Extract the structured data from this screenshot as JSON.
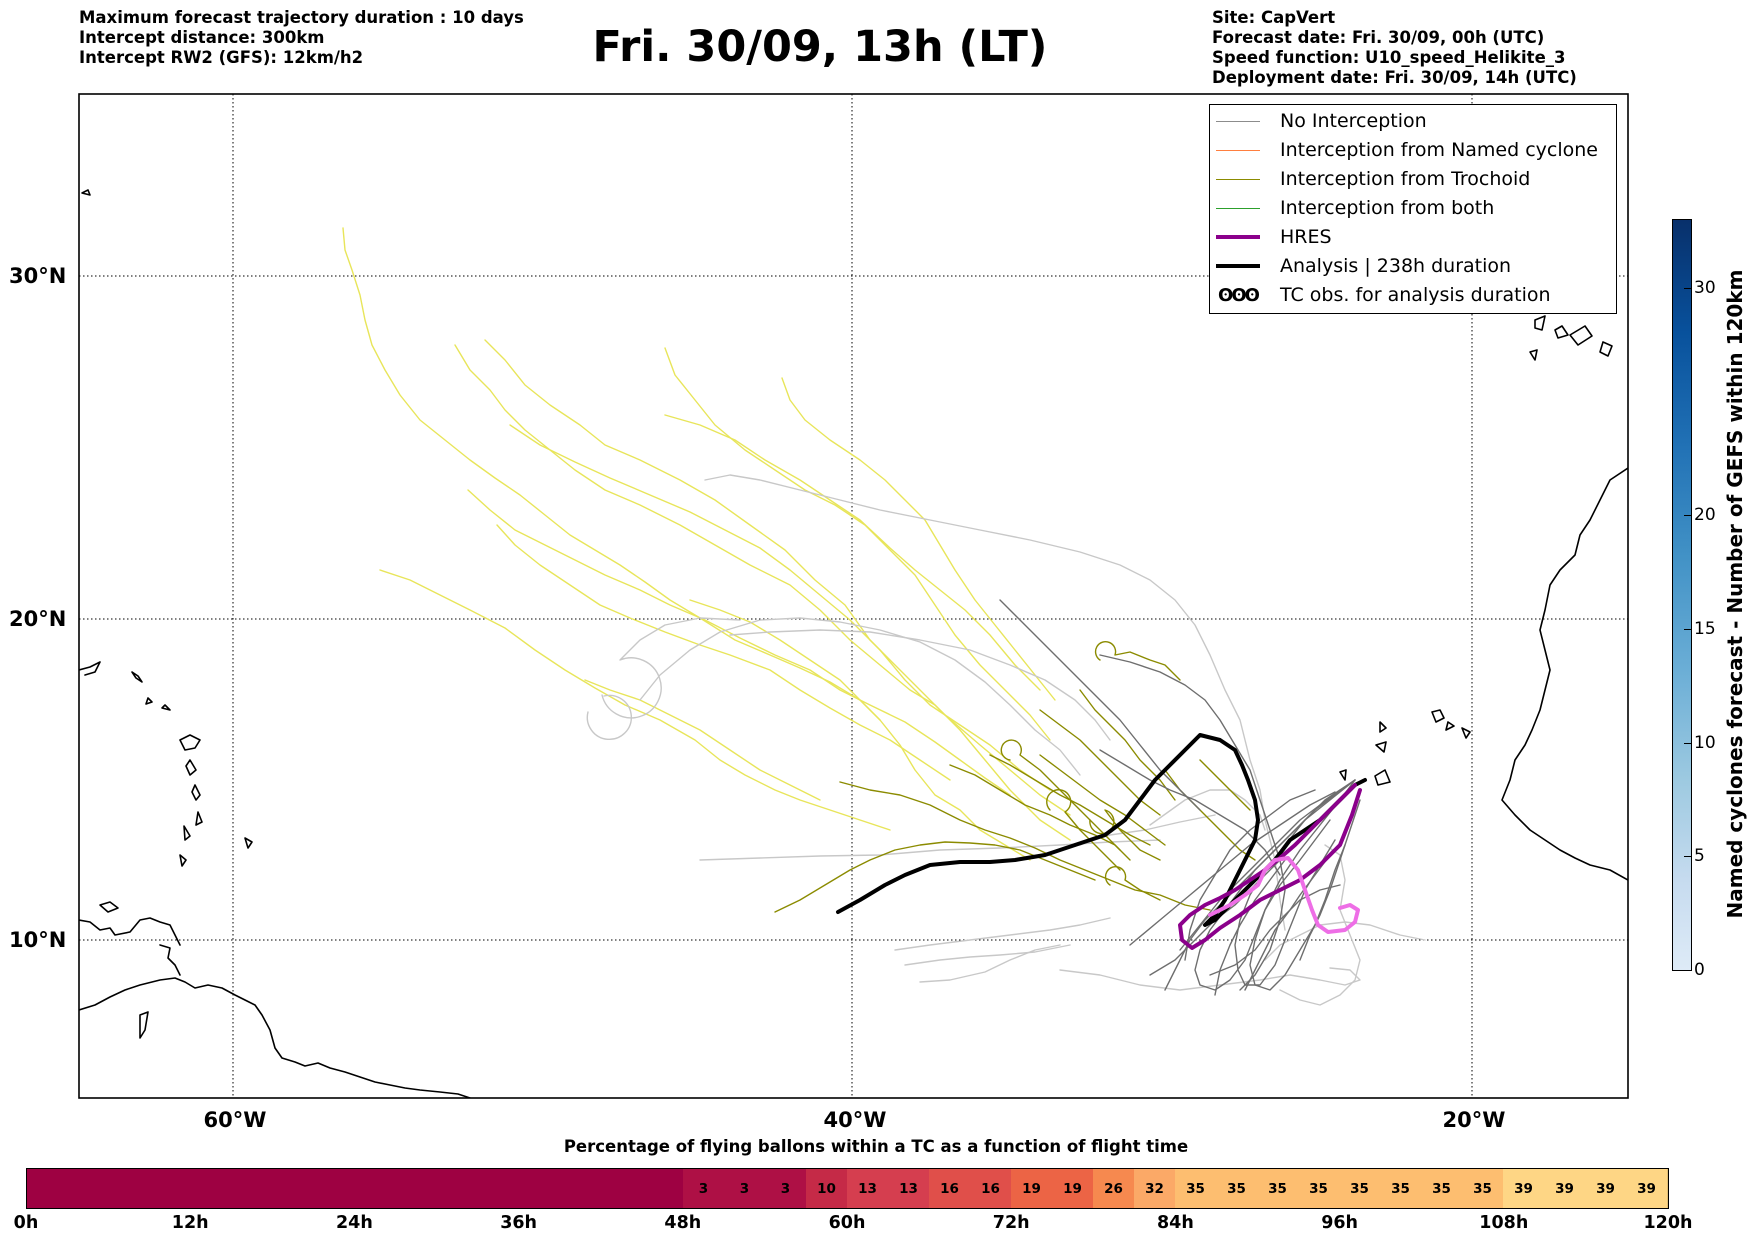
{
  "header": {
    "left": [
      "Maximum forecast trajectory duration : 10 days",
      "Intercept distance: 300km",
      "Intercept RW2 (GFS):  12km/h2"
    ],
    "title": "Fri. 30/09, 13h (LT)",
    "right": [
      "Site: CapVert",
      "Forecast date: Fri. 30/09, 00h (UTC)",
      "Speed function: U10_speed_Helikite_3",
      "Deployment date: Fri. 30/09, 14h (UTC)"
    ]
  },
  "map": {
    "lat_labels": [
      "30°N",
      "20°N",
      "10°N"
    ],
    "lon_labels": [
      "60°W",
      "40°W",
      "20°W"
    ]
  },
  "legend": {
    "items": [
      {
        "label": "No Interception",
        "color": "#8c8c8c",
        "width": 1.5
      },
      {
        "label": "Interception from Named cyclone",
        "color": "#ff7f3f",
        "width": 1.5
      },
      {
        "label": "Interception from Trochoid",
        "color": "#8b8b00",
        "width": 1.5
      },
      {
        "label": "Interception from both",
        "color": "#2ca02c",
        "width": 1.5
      },
      {
        "label": "HRES",
        "color": "#8b008b",
        "width": 4
      },
      {
        "label": "Analysis | 238h duration",
        "color": "#000000",
        "width": 4
      }
    ],
    "obs_symbol": "ʘʘʘ",
    "obs_label": "TC obs. for analysis duration"
  },
  "colorbar": {
    "label": "Named cyclones forecast - Number of GEFS within 120km",
    "ticks": [
      "0",
      "5",
      "10",
      "15",
      "20",
      "30"
    ],
    "tick_values": [
      0,
      5,
      10,
      15,
      20,
      30
    ],
    "max": 33
  },
  "bottom": {
    "title": "Percentage of flying ballons within a TC as a function of flight time",
    "tick_labels": [
      "0h",
      "12h",
      "24h",
      "36h",
      "48h",
      "60h",
      "72h",
      "84h",
      "96h",
      "108h",
      "120h"
    ],
    "cells": [
      {
        "v": "",
        "c": "#9e0142"
      },
      {
        "v": "",
        "c": "#9e0142"
      },
      {
        "v": "",
        "c": "#9e0142"
      },
      {
        "v": "",
        "c": "#9e0142"
      },
      {
        "v": "",
        "c": "#9e0142"
      },
      {
        "v": "",
        "c": "#9e0142"
      },
      {
        "v": "",
        "c": "#9e0142"
      },
      {
        "v": "",
        "c": "#9e0142"
      },
      {
        "v": "",
        "c": "#9e0142"
      },
      {
        "v": "",
        "c": "#9e0142"
      },
      {
        "v": "",
        "c": "#9e0142"
      },
      {
        "v": "",
        "c": "#9e0142"
      },
      {
        "v": "",
        "c": "#9e0142"
      },
      {
        "v": "",
        "c": "#9e0142"
      },
      {
        "v": "",
        "c": "#9e0142"
      },
      {
        "v": "",
        "c": "#9e0142"
      },
      {
        "v": "3",
        "c": "#ae1045"
      },
      {
        "v": "3",
        "c": "#ae1045"
      },
      {
        "v": "3",
        "c": "#ae1045"
      },
      {
        "v": "10",
        "c": "#c52a47"
      },
      {
        "v": "13",
        "c": "#d53e4f"
      },
      {
        "v": "13",
        "c": "#d53e4f"
      },
      {
        "v": "16",
        "c": "#e04f4a"
      },
      {
        "v": "16",
        "c": "#e04f4a"
      },
      {
        "v": "19",
        "c": "#ec6445"
      },
      {
        "v": "19",
        "c": "#ec6445"
      },
      {
        "v": "26",
        "c": "#f6894f"
      },
      {
        "v": "32",
        "c": "#fba967"
      },
      {
        "v": "35",
        "c": "#fdbe70"
      },
      {
        "v": "35",
        "c": "#fdbe70"
      },
      {
        "v": "35",
        "c": "#fdbe70"
      },
      {
        "v": "35",
        "c": "#fdbe70"
      },
      {
        "v": "35",
        "c": "#fdbe70"
      },
      {
        "v": "35",
        "c": "#fdbe70"
      },
      {
        "v": "35",
        "c": "#fdbe70"
      },
      {
        "v": "35",
        "c": "#fdbe70"
      },
      {
        "v": "39",
        "c": "#fed685"
      },
      {
        "v": "39",
        "c": "#fed685"
      },
      {
        "v": "39",
        "c": "#fed685"
      },
      {
        "v": "39",
        "c": "#fed685"
      }
    ]
  }
}
